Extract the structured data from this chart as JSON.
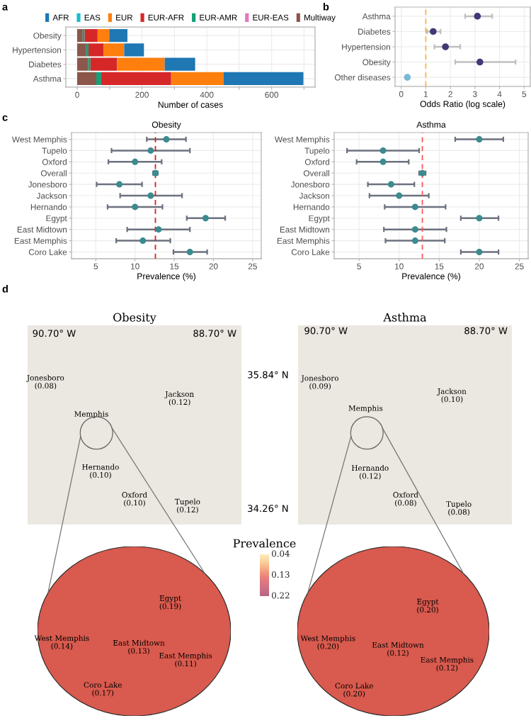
{
  "chart_data": [
    {
      "type": "bar",
      "orientation": "horizontal",
      "stacked": true,
      "categories": [
        "Obesity",
        "Hypertension",
        "Diabetes",
        "Asthma"
      ],
      "series": [
        {
          "name": "Multiway",
          "color": "#8c564b",
          "values": [
            17,
            28,
            34,
            59
          ]
        },
        {
          "name": "EUR-EAS",
          "color": "#e377c2",
          "values": [
            null,
            null,
            null,
            null
          ]
        },
        {
          "name": "EUR-AMR",
          "color": "#14a077",
          "values": [
            6,
            7,
            7,
            15
          ]
        },
        {
          "name": "EUR-AFR",
          "color": "#d62728",
          "values": [
            40,
            47,
            82,
            216
          ]
        },
        {
          "name": "EUR",
          "color": "#ff7f0e",
          "values": [
            36,
            63,
            147,
            162
          ]
        },
        {
          "name": "EAS",
          "color": "#17becf",
          "values": [
            null,
            null,
            null,
            null
          ]
        },
        {
          "name": "AFR",
          "color": "#1f77b4",
          "values": [
            56,
            61,
            94,
            246
          ]
        }
      ],
      "xlabel": "Number of cases",
      "xlim": [
        -35,
        734
      ],
      "xticks": [
        0,
        {
          "value": 100,
          "label": null
        },
        200,
        {
          "value": 300,
          "label": null
        },
        400,
        {
          "value": 500,
          "label": null
        },
        600,
        {
          "value": 700,
          "label": null
        }
      ],
      "grid": true,
      "legend": "top",
      "annotations": [
        "a"
      ]
    },
    {
      "type": "scatter",
      "orientation": "horizontal",
      "categories": [
        "Asthma",
        "Diabetes",
        "Hypertension",
        "Obesity",
        "Other diseases"
      ],
      "values": [
        3.1,
        1.3,
        1.8,
        3.2,
        0.25
      ],
      "errors": [
        [
          2.6,
          3.7
        ],
        [
          1.05,
          1.6
        ],
        [
          1.35,
          2.4
        ],
        [
          2.2,
          4.65
        ],
        null
      ],
      "colors": [
        "#3f3a75",
        "#3f3a75",
        "#3f3a75",
        "#3f3a75",
        "#79b8d9"
      ],
      "xlabel": "Odds Ratio (log scale)",
      "xlim": [
        -0.25,
        5.25
      ],
      "xticks": [
        0,
        1,
        2,
        3,
        4,
        5
      ],
      "ref_lines": [
        {
          "axis": "x",
          "value": 1,
          "color": "#f6b93b",
          "line_style": "dashed"
        }
      ],
      "grid": true,
      "marker": "circle",
      "annotations": [
        "b"
      ]
    },
    {
      "type": "scatter",
      "orientation": "horizontal",
      "title": "Obesity",
      "categories": [
        "West Memphis",
        "Tupelo",
        "Oxford",
        "Overall",
        "Jonesboro",
        "Jackson",
        "Hernando",
        "Egypt",
        "East Midtown",
        "East Memphis",
        "Coro Lake"
      ],
      "values": [
        14,
        12,
        10,
        12.6,
        8,
        12,
        10,
        19,
        13,
        11,
        17
      ],
      "errors": [
        [
          11.5,
          16.5
        ],
        [
          7,
          17
        ],
        [
          6.6,
          13.4
        ],
        [
          12.3,
          12.9
        ],
        [
          5.1,
          10.9
        ],
        [
          8.1,
          16
        ],
        [
          6.5,
          13.5
        ],
        [
          16.6,
          21.5
        ],
        [
          9,
          17
        ],
        [
          7.6,
          14.5
        ],
        [
          14.9,
          19.2
        ]
      ],
      "color": "#3b8b8f",
      "xlabel": "Prevalence (%)",
      "xlim": [
        1.9,
        26.1
      ],
      "xticks": [
        5,
        10,
        15,
        20,
        25
      ],
      "ref_lines": [
        {
          "axis": "x",
          "value": 12.6,
          "color": "#e41a1c",
          "line_style": "dashed"
        }
      ],
      "grid": true,
      "marker": "circle",
      "annotations": [
        "c"
      ]
    },
    {
      "type": "scatter",
      "orientation": "horizontal",
      "title": "Asthma",
      "categories": [
        "West Memphis",
        "Tupelo",
        "Oxford",
        "Overall",
        "Jonesboro",
        "Jackson",
        "Hernando",
        "Egypt",
        "East Midtown",
        "East Memphis",
        "Coro Lake"
      ],
      "values": [
        20,
        8,
        8,
        12.9,
        9,
        10,
        12,
        20,
        12,
        12,
        20
      ],
      "errors": [
        [
          17,
          23
        ],
        [
          3.5,
          12.5
        ],
        [
          4.7,
          11.2
        ],
        [
          12.5,
          13.3
        ],
        [
          6.1,
          11.9
        ],
        [
          6.3,
          13.7
        ],
        [
          8.2,
          15.8
        ],
        [
          17.7,
          22.4
        ],
        [
          8.1,
          15.9
        ],
        [
          8.3,
          15.7
        ],
        [
          17.7,
          22.4
        ]
      ],
      "color": "#3b8b8f",
      "xlabel": "Prevalence (%)",
      "xlim": [
        1.9,
        26.1
      ],
      "xticks": [
        5,
        10,
        15,
        20,
        25
      ],
      "ref_lines": [
        {
          "axis": "x",
          "value": 12.9,
          "color": "#f8595a",
          "line_style": "dashed"
        }
      ],
      "grid": true,
      "marker": "circle"
    },
    {
      "type": "other",
      "title": "Obesity",
      "annotations": [
        "d",
        "90.70° W",
        "88.70° W",
        "35.84° N",
        "34.26° N",
        "Jonesboro\n(0.08)",
        "Jackson\n(0.12)",
        "Memphis",
        "Hernando\n(0.10)",
        "Oxford\n(0.10)",
        "Tupelo\n(0.12)"
      ]
    },
    {
      "type": "other",
      "title": "Asthma",
      "annotations": [
        "90.70° W",
        "88.70° W",
        "Jonesboro\n(0.09)",
        "Jackson\n(0.10)",
        "Memphis",
        "Hernando\n(0.12)",
        "Oxford\n(0.08)",
        "Tupelo\n(0.08)"
      ]
    },
    {
      "type": "other",
      "title": "Prevalence",
      "annotations": [
        "0.04",
        "0.13",
        "0.22"
      ],
      "colors": [
        "#fde9aa",
        "#f9b96b",
        "#f07a50",
        "#dc4a4c",
        "#b83a55",
        "#9e2f5b"
      ]
    },
    {
      "type": "other",
      "annotations": [
        "Egypt\n(0.19)",
        "West Memphis\n(0.14)",
        "East Midtown\n(0.13)",
        "East Memphis\n(0.11)",
        "Coro Lake\n(0.17)"
      ]
    },
    {
      "type": "other",
      "annotations": [
        "Egypt\n(0.20)",
        "West Memphis\n(0.20)",
        "East Midtown\n(0.12)",
        "East Memphis\n(0.12)",
        "Coro Lake\n(0.20)"
      ]
    }
  ]
}
